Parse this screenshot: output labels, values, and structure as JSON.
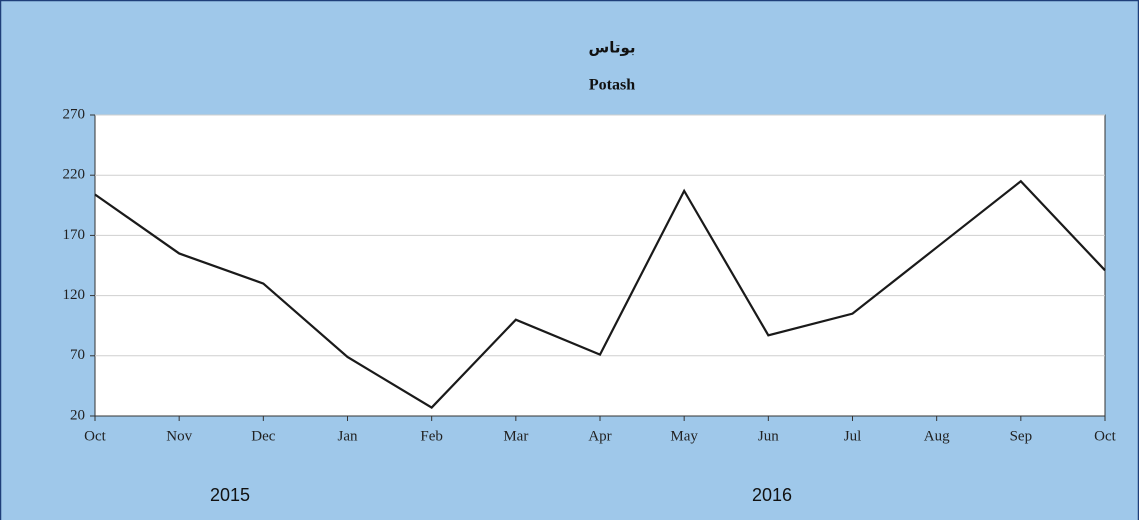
{
  "chart_data": {
    "type": "line",
    "title": "بوتاس",
    "subtitle": "Potash",
    "categories": [
      "Oct",
      "Nov",
      "Dec",
      "Jan",
      "Feb",
      "Mar",
      "Apr",
      "May",
      "Jun",
      "Jul",
      "Aug",
      "Sep",
      "Oct"
    ],
    "series": [
      {
        "name": "Potash",
        "color": "#1a1a1a",
        "values": [
          204,
          155,
          130,
          69,
          27,
          100,
          71,
          207,
          87,
          105,
          160,
          215,
          141
        ]
      }
    ],
    "ylim": [
      20,
      270
    ],
    "yticks": [
      20,
      70,
      120,
      170,
      220,
      270
    ],
    "grid": true,
    "year_labels": [
      "2015",
      "2016"
    ]
  }
}
